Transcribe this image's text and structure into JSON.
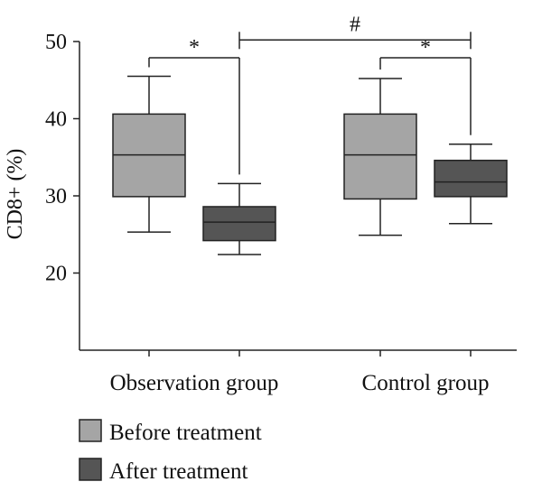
{
  "chart_data": {
    "type": "box",
    "xlabel": "",
    "ylabel": "CD8+ (%)",
    "ylim": [
      10,
      50
    ],
    "yticks": [
      20,
      30,
      40,
      50
    ],
    "categories": [
      "Observation group",
      "Control group"
    ],
    "series": [
      {
        "name": "Before treatment",
        "color": "#a5a5a5",
        "boxes": [
          {
            "min": 25.3,
            "q1": 29.9,
            "median": 35.3,
            "q3": 40.6,
            "max": 45.5
          },
          {
            "min": 24.9,
            "q1": 29.6,
            "median": 35.3,
            "q3": 40.6,
            "max": 45.2
          }
        ]
      },
      {
        "name": "After treatment",
        "color": "#555555",
        "boxes": [
          {
            "min": 22.4,
            "q1": 24.2,
            "median": 26.6,
            "q3": 28.6,
            "max": 31.6
          },
          {
            "min": 26.4,
            "q1": 29.9,
            "median": 31.8,
            "q3": 34.6,
            "max": 36.7
          }
        ]
      }
    ],
    "annotations": [
      {
        "text": "*",
        "from": [
          0,
          0
        ],
        "to": [
          0,
          1
        ],
        "y": 47.9
      },
      {
        "text": "*",
        "from": [
          1,
          0
        ],
        "to": [
          1,
          1
        ],
        "y": 47.9
      },
      {
        "text": "#",
        "from": [
          0,
          1
        ],
        "to": [
          1,
          1
        ],
        "y": 50.2
      }
    ],
    "legend_position": "bottom-left",
    "grid": false
  }
}
